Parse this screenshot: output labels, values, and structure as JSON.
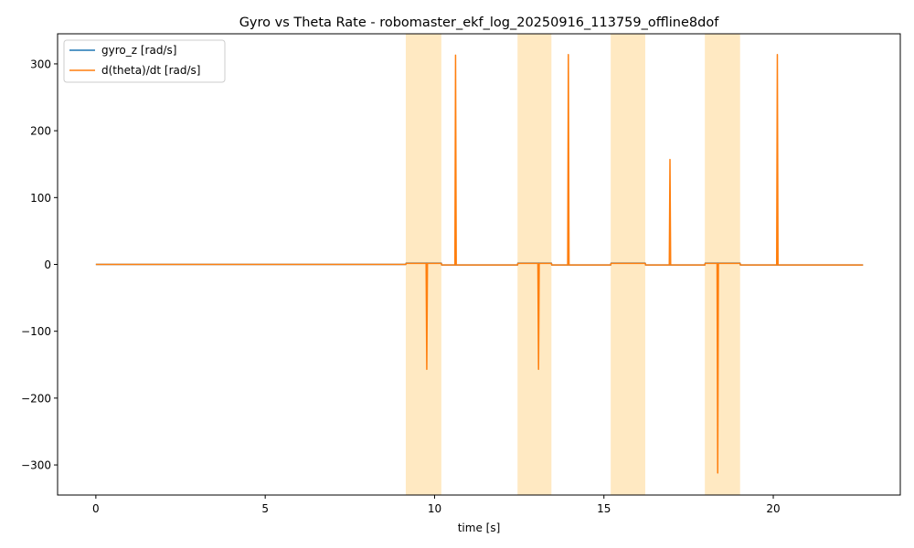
{
  "chart_data": {
    "type": "line",
    "title": "Gyro vs Theta Rate - robomaster_ekf_log_20250916_113759_offline8dof",
    "xlabel": "time [s]",
    "ylabel": "",
    "xlim": [
      -1.13,
      23.75
    ],
    "ylim": [
      -345,
      345
    ],
    "xticks": [
      0,
      5,
      10,
      15,
      20
    ],
    "yticks": [
      -300,
      -200,
      -100,
      0,
      100,
      200,
      300
    ],
    "xtick_labels": [
      "0",
      "5",
      "10",
      "15",
      "20"
    ],
    "ytick_labels": [
      "−300",
      "−200",
      "−100",
      "0",
      "100",
      "200",
      "300"
    ],
    "grid": false,
    "legend_position": "upper-left",
    "shaded_regions": [
      {
        "x0": 9.15,
        "x1": 10.2
      },
      {
        "x0": 12.45,
        "x1": 13.45
      },
      {
        "x0": 15.2,
        "x1": 16.22
      },
      {
        "x0": 17.98,
        "x1": 19.02
      }
    ],
    "shade_color": "#ffe9c2",
    "series": [
      {
        "name": "gyro_z [rad/s]",
        "color": "#1f77b4",
        "points": [
          [
            0,
            0
          ],
          [
            9.15,
            0
          ],
          [
            9.16,
            1.8
          ],
          [
            10.2,
            1.8
          ],
          [
            10.21,
            -0.8
          ],
          [
            12.45,
            -0.8
          ],
          [
            12.46,
            1.8
          ],
          [
            13.45,
            1.8
          ],
          [
            13.46,
            -0.8
          ],
          [
            15.2,
            -0.8
          ],
          [
            15.21,
            1.8
          ],
          [
            16.22,
            1.8
          ],
          [
            16.23,
            -0.8
          ],
          [
            17.98,
            -0.8
          ],
          [
            17.99,
            1.8
          ],
          [
            19.02,
            1.8
          ],
          [
            19.03,
            -0.8
          ],
          [
            22.65,
            -0.8
          ]
        ]
      },
      {
        "name": "d(theta)/dt [rad/s]",
        "color": "#ff7f0e",
        "points": [
          [
            0,
            0
          ],
          [
            9.15,
            0
          ],
          [
            9.16,
            1.5
          ],
          [
            9.75,
            1.5
          ],
          [
            9.77,
            -157
          ],
          [
            9.79,
            1.5
          ],
          [
            10.2,
            1.5
          ],
          [
            10.21,
            -0.8
          ],
          [
            10.6,
            -0.8
          ],
          [
            10.62,
            313
          ],
          [
            10.64,
            -0.8
          ],
          [
            12.45,
            -0.8
          ],
          [
            12.46,
            1.5
          ],
          [
            13.05,
            1.5
          ],
          [
            13.07,
            -157
          ],
          [
            13.09,
            1.5
          ],
          [
            13.45,
            1.5
          ],
          [
            13.46,
            -0.8
          ],
          [
            13.93,
            -0.8
          ],
          [
            13.95,
            314
          ],
          [
            13.97,
            -0.8
          ],
          [
            15.2,
            -0.8
          ],
          [
            15.21,
            1.5
          ],
          [
            16.22,
            1.5
          ],
          [
            16.23,
            -0.8
          ],
          [
            16.93,
            -0.8
          ],
          [
            16.95,
            157
          ],
          [
            16.97,
            -0.8
          ],
          [
            17.98,
            -0.8
          ],
          [
            17.99,
            1.5
          ],
          [
            18.34,
            1.5
          ],
          [
            18.36,
            -312
          ],
          [
            18.38,
            1.5
          ],
          [
            19.02,
            1.5
          ],
          [
            19.03,
            -0.8
          ],
          [
            20.1,
            -0.8
          ],
          [
            20.12,
            314
          ],
          [
            20.14,
            -0.8
          ],
          [
            22.65,
            -0.8
          ]
        ]
      }
    ]
  }
}
